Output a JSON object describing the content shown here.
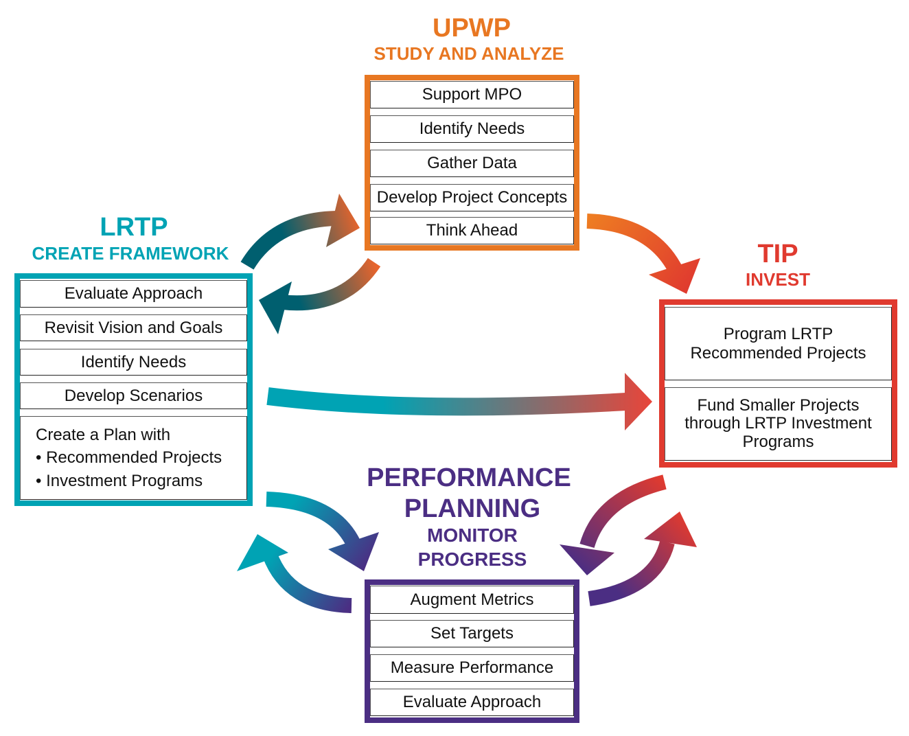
{
  "colors": {
    "upwp": "#E87722",
    "lrtp": "#00A3B4",
    "tip": "#E03A2F",
    "performance": "#4B2E83",
    "dark_teal": "#005F6F"
  },
  "upwp": {
    "title": "UPWP",
    "subtitle": "STUDY AND ANALYZE",
    "items": [
      "Support MPO",
      "Identify Needs",
      "Gather Data",
      "Develop Project Concepts",
      "Think Ahead"
    ]
  },
  "lrtp": {
    "title": "LRTP",
    "subtitle": "CREATE FRAMEWORK",
    "items": [
      "Evaluate Approach",
      "Revisit Vision and Goals",
      "Identify Needs",
      "Develop Scenarios"
    ],
    "plan": {
      "lead": "Create a Plan with",
      "bullets": [
        "• Recommended Projects",
        "• Investment Programs"
      ]
    }
  },
  "tip": {
    "title": "TIP",
    "subtitle": "INVEST",
    "items": [
      [
        "Program LRTP",
        "Recommended Projects"
      ],
      [
        "Fund Smaller Projects",
        "through LRTP Investment",
        "Programs"
      ]
    ]
  },
  "performance": {
    "title_line1": "PERFORMANCE",
    "title_line2": "PLANNING",
    "subtitle_line1": "MONITOR",
    "subtitle_line2": "PROGRESS",
    "items": [
      "Augment Metrics",
      "Set Targets",
      "Measure Performance",
      "Evaluate Approach"
    ]
  }
}
